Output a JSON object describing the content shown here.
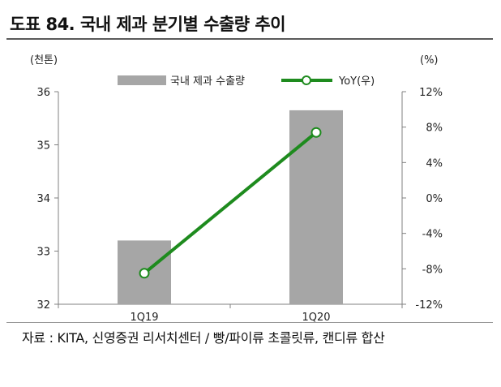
{
  "title": "도표 84. 국내 제과 분기별 수출량 추이",
  "source": "자료 : KITA, 신영증권 리서치센터 / 빵/파이류 초콜릿류, 캔디류 합산",
  "colors": {
    "bar": "#a6a6a6",
    "line": "#1e8b1e",
    "axis": "#808080"
  },
  "chart_data": {
    "type": "bar",
    "categories": [
      "1Q19",
      "1Q20"
    ],
    "left_unit": "(천톤)",
    "right_unit": "(%)",
    "ylim": [
      32,
      36
    ],
    "y2lim": [
      -12,
      12
    ],
    "left_ticks": [
      "32",
      "33",
      "34",
      "35",
      "36"
    ],
    "right_ticks": [
      "-12%",
      "-8%",
      "-4%",
      "0%",
      "4%",
      "8%",
      "12%"
    ],
    "series": [
      {
        "name": "국내 제과 수출량",
        "type": "bar",
        "axis": "left",
        "values": [
          33.2,
          35.65
        ]
      },
      {
        "name": "YoY(우)",
        "type": "line",
        "axis": "right",
        "values": [
          -8.5,
          7.4
        ]
      }
    ],
    "legend_position": "top"
  }
}
